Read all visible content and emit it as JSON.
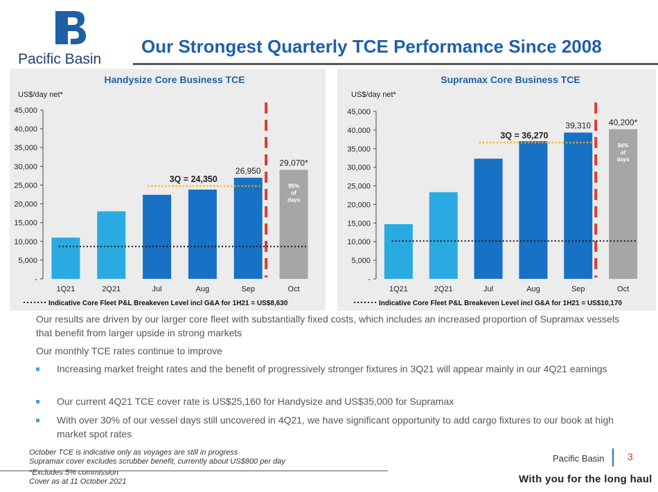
{
  "header": {
    "brand": "Pacific Basin",
    "title": "Our Strongest Quarterly TCE Performance Since 2008"
  },
  "colors": {
    "brand_blue": "#1f5fa8",
    "light_bar": "#29abe2",
    "dark_bar": "#1771c4",
    "forecast_bar": "#a6a6a6",
    "cutoff_red": "#e03a2f",
    "target_dots": "#f5b400"
  },
  "chart_data": [
    {
      "type": "bar",
      "title": "Handysize Core Business TCE",
      "ylabel": "US$/day net*",
      "ylim": [
        0,
        45000
      ],
      "yticks": [
        "-",
        "5,000",
        "10,000",
        "15,000",
        "20,000",
        "25,000",
        "30,000",
        "35,000",
        "40,000",
        "45,000"
      ],
      "categories": [
        "1Q21",
        "2Q21",
        "Jul",
        "Aug",
        "Sep",
        "Oct"
      ],
      "values": [
        11000,
        18000,
        22400,
        23800,
        26950,
        29070
      ],
      "value_labels": [
        "",
        "",
        "",
        "",
        "26,950",
        "29,070*"
      ],
      "quarter_avg": {
        "label": "3Q = 24,350",
        "value": 24350
      },
      "forecast_note": [
        "95%",
        "of",
        "days"
      ],
      "breakeven": {
        "value": 8630,
        "legend": "Indicative Core Fleet P&L Breakeven Level incl G&A for 1H21 = US$8,630"
      }
    },
    {
      "type": "bar",
      "title": "Supramax Core Business TCE",
      "ylabel": "US$/day net*",
      "ylim": [
        0,
        45000
      ],
      "yticks": [
        "-",
        "5,000",
        "10,000",
        "15,000",
        "20,000",
        "25,000",
        "30,000",
        "35,000",
        "40,000",
        "45,000"
      ],
      "categories": [
        "1Q21",
        "2Q21",
        "Jul",
        "Aug",
        "Sep",
        "Oct"
      ],
      "values": [
        14700,
        23300,
        32300,
        37000,
        39310,
        40200
      ],
      "value_labels": [
        "",
        "",
        "",
        "",
        "39,310",
        "40,200*"
      ],
      "quarter_avg": {
        "label": "3Q = 36,270",
        "value": 36270
      },
      "forecast_note": [
        "94%",
        "of",
        "days"
      ],
      "breakeven": {
        "value": 10170,
        "legend": "Indicative Core Fleet P&L Breakeven Level incl G&A for 1H21 = US$10,170"
      }
    }
  ],
  "body": {
    "intro": "Our results are driven by our larger core fleet with substantially fixed costs, which includes an increased proportion of Supramax vessels that benefit from larger upside in strong markets",
    "subhead": "Our monthly TCE rates continue to improve",
    "bullets": [
      "Increasing market freight rates and the benefit of progressively stronger fixtures in 3Q21 will appear mainly in our 4Q21 earnings",
      "Our current 4Q21 TCE cover rate is US$25,160 for Handysize and US$35,000 for Supramax",
      "With over 30% of our vessel days still uncovered in 4Q21, we have significant opportunity to add cargo fixtures to our book at high market spot rates"
    ]
  },
  "footnotes": [
    "October TCE is indicative only as voyages are still in progress",
    "Supramax cover excludes scrubber benefit, currently about US$800 per day",
    "*Excludes 5% commission",
    "Cover as at 11 October 2021"
  ],
  "footer": {
    "brand": "Pacific Basin",
    "page": "3",
    "tagline": "With you for the long haul"
  }
}
